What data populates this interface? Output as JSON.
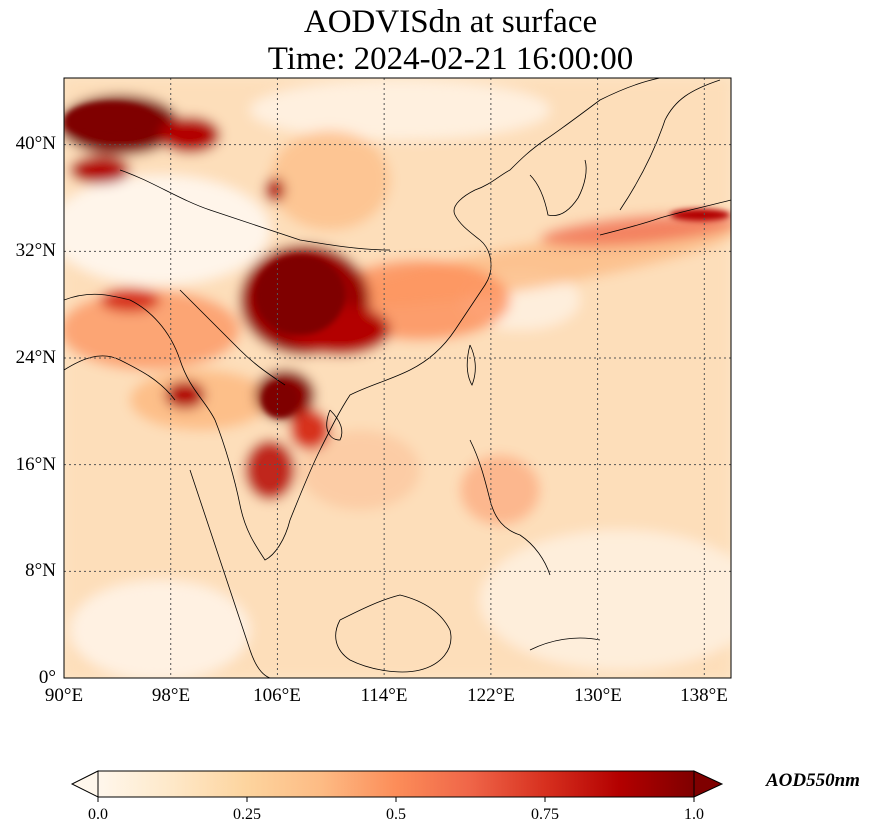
{
  "title": {
    "line1": "AODVISdn at surface",
    "line2": "Time: 2024-02-21 16:00:00"
  },
  "map": {
    "extent": {
      "lon": [
        90,
        140
      ],
      "lat": [
        0,
        45
      ]
    },
    "gridlines": true,
    "lon_ticks": [
      90,
      98,
      106,
      114,
      122,
      130,
      138
    ],
    "lat_ticks": [
      0,
      8,
      16,
      24,
      32,
      40
    ],
    "lon_tick_labels": [
      "90°E",
      "98°E",
      "106°E",
      "114°E",
      "122°E",
      "130°E",
      "138°E"
    ],
    "lat_tick_labels": [
      "0°",
      "8°N",
      "16°N",
      "24°N",
      "32°N",
      "40°N"
    ]
  },
  "colorbar": {
    "label": "AOD550nm",
    "colormap": "OrRd",
    "min": 0.0,
    "max": 1.0,
    "extend": "both",
    "ticks": [
      "0.0",
      "0.25",
      "0.5",
      "0.75",
      "1.0"
    ],
    "colors": [
      "#fff7ec",
      "#fee8c8",
      "#fdd49e",
      "#fdbb84",
      "#fc8d59",
      "#ef6548",
      "#d7301f",
      "#b30000",
      "#7f0000"
    ]
  }
}
